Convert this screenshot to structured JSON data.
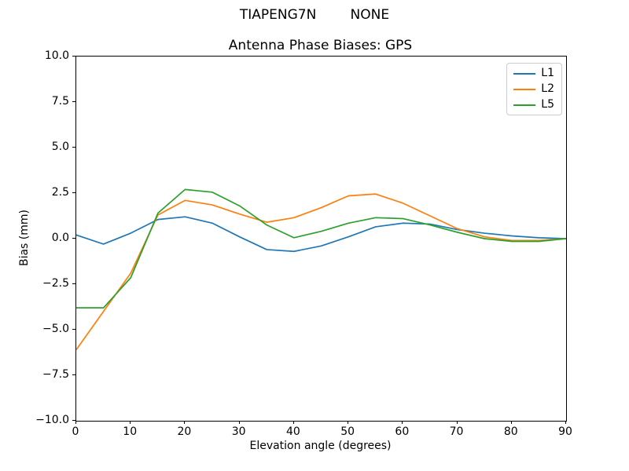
{
  "figure": {
    "suptitle": "TIAPENG7N        NONE"
  },
  "chart_data": {
    "type": "line",
    "suptitle": "TIAPENG7N        NONE",
    "title": "Antenna Phase Biases: GPS",
    "xlabel": "Elevation angle (degrees)",
    "ylabel": "Bias (mm)",
    "xlim": [
      0,
      90
    ],
    "ylim": [
      -10,
      10
    ],
    "x_ticks": [
      0,
      10,
      20,
      30,
      40,
      50,
      60,
      70,
      80,
      90
    ],
    "y_ticks": [
      10.0,
      7.5,
      5.0,
      2.5,
      0.0,
      -2.5,
      -5.0,
      -7.5,
      -10.0
    ],
    "y_tick_labels": [
      "10.0",
      "7.5",
      "5.0",
      "2.5",
      "0.0",
      "−2.5",
      "−5.0",
      "−7.5",
      "−10.0"
    ],
    "grid": false,
    "legend_position": "upper right",
    "x": [
      0,
      5,
      10,
      15,
      20,
      25,
      30,
      35,
      40,
      45,
      50,
      55,
      60,
      65,
      70,
      75,
      80,
      85,
      90
    ],
    "series": [
      {
        "name": "L1",
        "color": "#1f77b4",
        "values": [
          0.2,
          -0.3,
          0.3,
          1.05,
          1.2,
          0.85,
          0.1,
          -0.6,
          -0.7,
          -0.4,
          0.1,
          0.65,
          0.85,
          0.8,
          0.5,
          0.3,
          0.15,
          0.05,
          0.0
        ]
      },
      {
        "name": "L2",
        "color": "#ff7f0e",
        "values": [
          -6.1,
          -4.0,
          -1.9,
          1.3,
          2.1,
          1.85,
          1.35,
          0.9,
          1.15,
          1.7,
          2.35,
          2.45,
          1.95,
          1.25,
          0.55,
          0.1,
          -0.1,
          -0.1,
          0.0
        ]
      },
      {
        "name": "L5",
        "color": "#2ca02c",
        "values": [
          -3.8,
          -3.8,
          -2.15,
          1.4,
          2.7,
          2.55,
          1.8,
          0.75,
          0.05,
          0.4,
          0.85,
          1.15,
          1.1,
          0.75,
          0.35,
          0.0,
          -0.15,
          -0.15,
          0.0
        ]
      }
    ]
  }
}
